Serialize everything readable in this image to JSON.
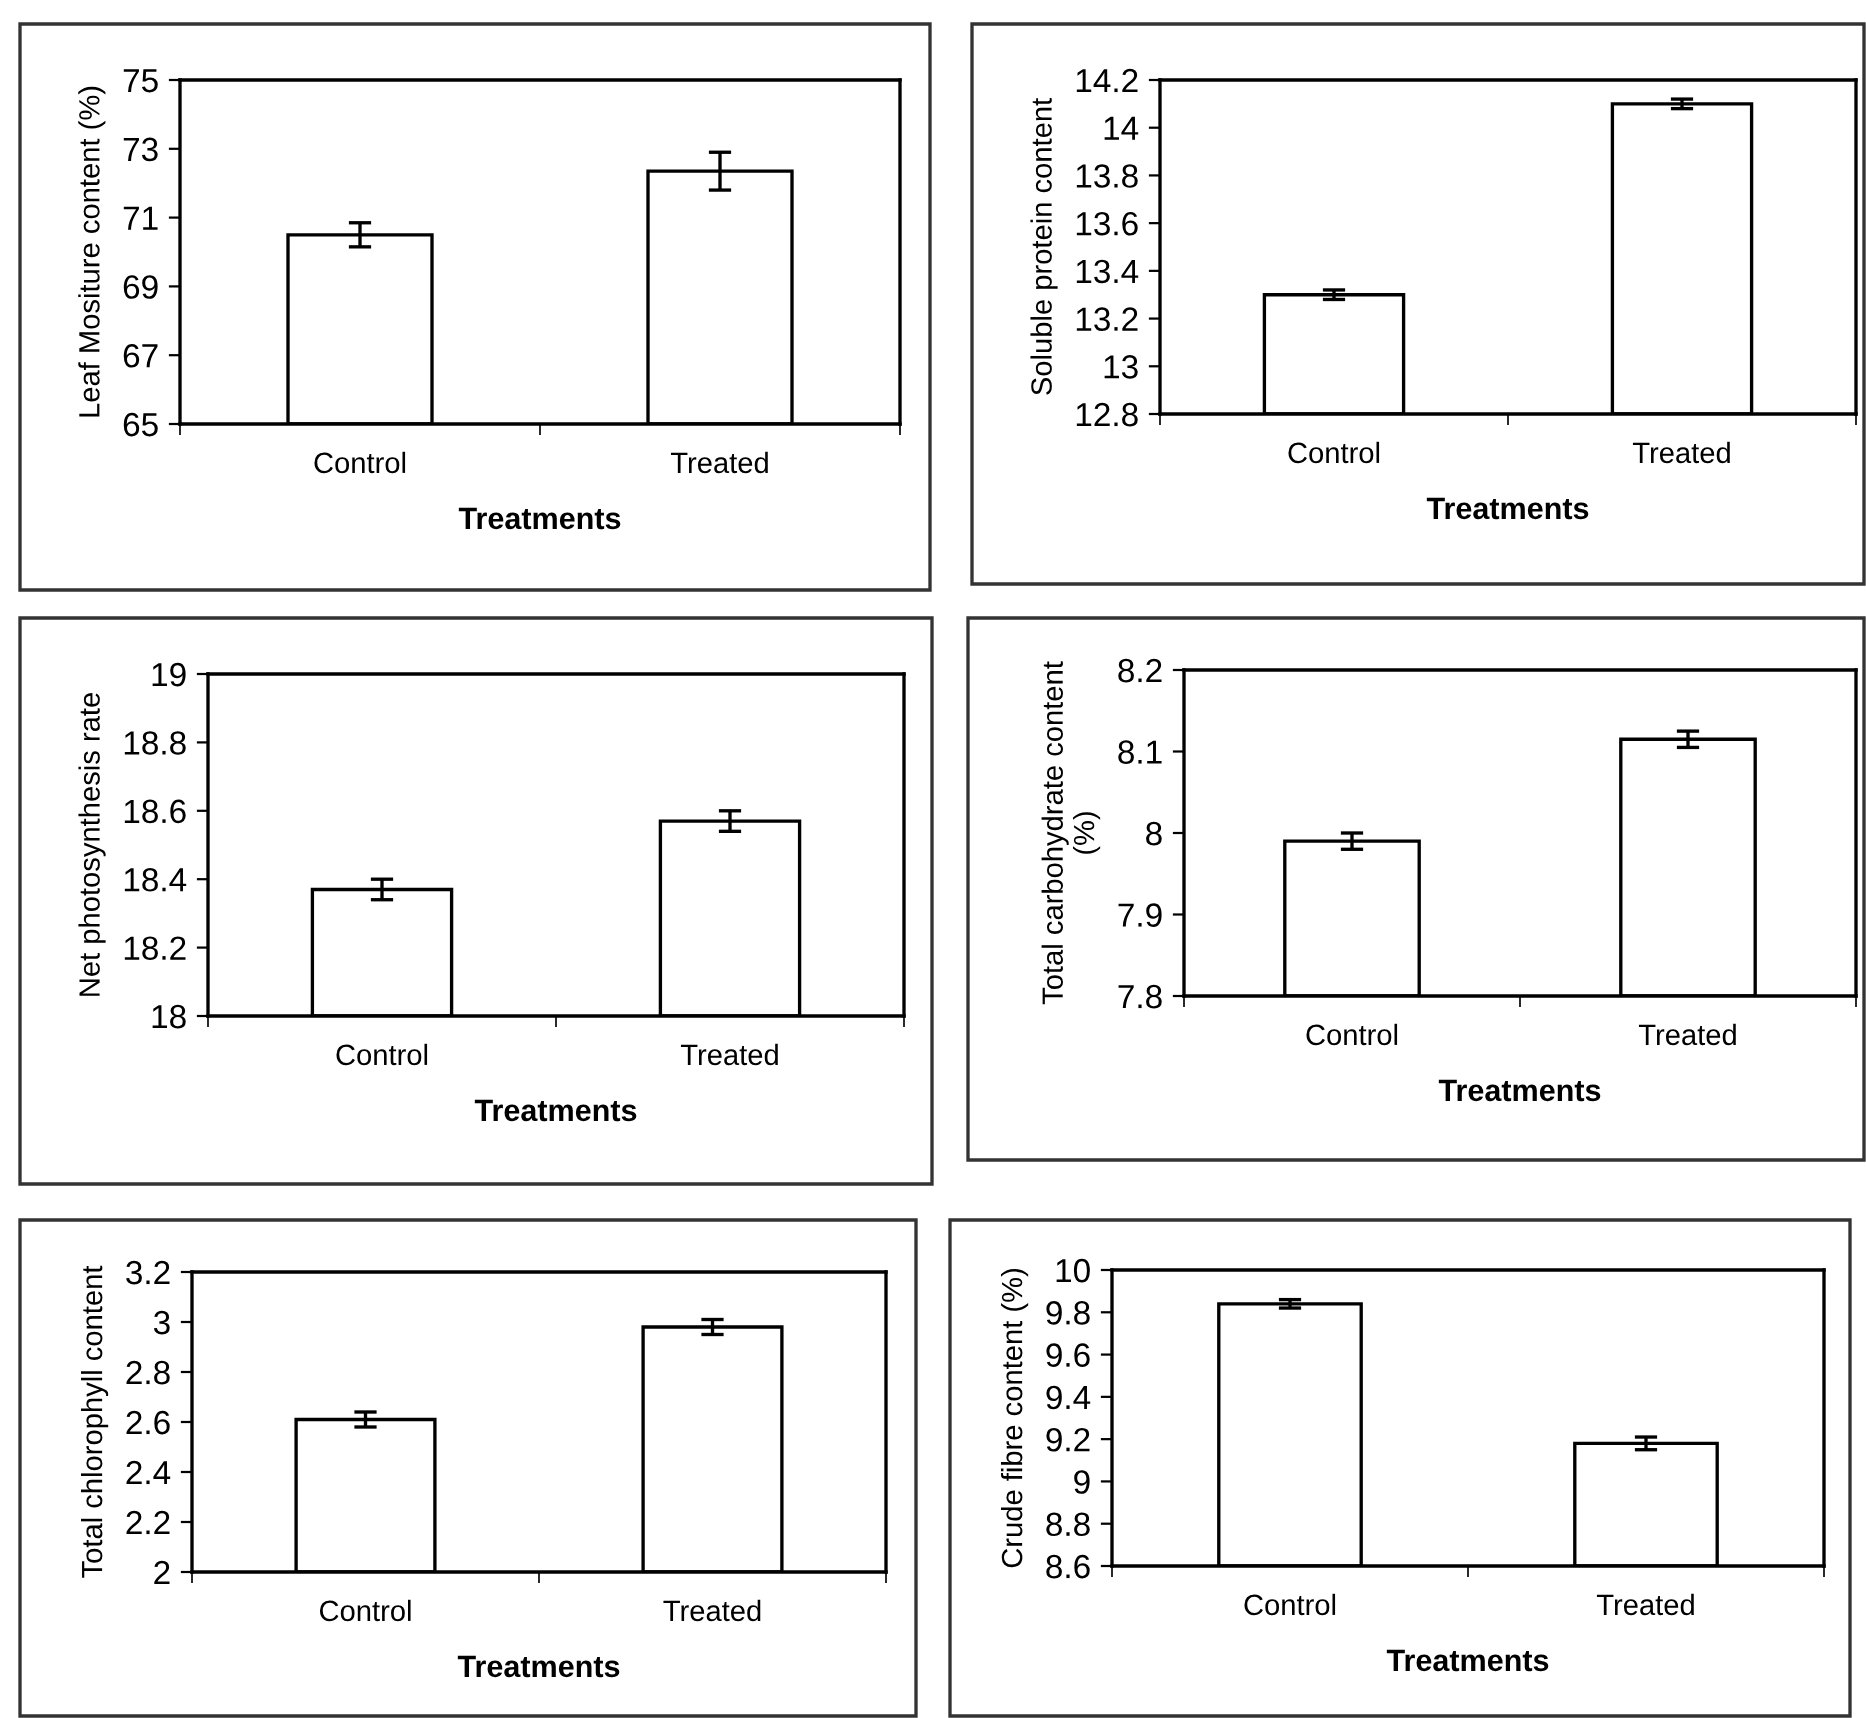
{
  "chart_data": [
    {
      "type": "bar",
      "categories": [
        "Control",
        "Treated"
      ],
      "values": [
        70.5,
        72.35
      ],
      "errors": [
        0.35,
        0.55
      ],
      "color": "#ffffff",
      "xlabel": "Treatments",
      "ylabel": "Leaf Mositure content (%)",
      "ylim": [
        65,
        75
      ],
      "yticks": [
        65,
        67,
        69,
        71,
        73,
        75
      ],
      "grid": false,
      "legend": false
    },
    {
      "type": "bar",
      "categories": [
        "Control",
        "Treated"
      ],
      "values": [
        13.3,
        14.1
      ],
      "errors": [
        0.02,
        0.02
      ],
      "color": "#ffffff",
      "xlabel": "Treatments",
      "ylabel": "Soluble protein content",
      "ylim": [
        12.8,
        14.2
      ],
      "yticks": [
        12.8,
        13,
        13.2,
        13.4,
        13.6,
        13.8,
        14,
        14.2
      ],
      "grid": false,
      "legend": false
    },
    {
      "type": "bar",
      "categories": [
        "Control",
        "Treated"
      ],
      "values": [
        18.37,
        18.57
      ],
      "errors": [
        0.03,
        0.03
      ],
      "color": "#ffffff",
      "xlabel": "Treatments",
      "ylabel": "Net photosynthesis rate",
      "ylim": [
        18,
        19
      ],
      "yticks": [
        18,
        18.2,
        18.4,
        18.6,
        18.8,
        19
      ],
      "grid": false,
      "legend": false
    },
    {
      "type": "bar",
      "categories": [
        "Control",
        "Treated"
      ],
      "values": [
        7.99,
        8.115
      ],
      "errors": [
        0.01,
        0.01
      ],
      "color": "#ffffff",
      "xlabel": "Treatments",
      "ylabel": "Total carbohydrate content\n(%)",
      "ylim": [
        7.8,
        8.2
      ],
      "yticks": [
        7.8,
        7.9,
        8,
        8.1,
        8.2
      ],
      "grid": false,
      "legend": false
    },
    {
      "type": "bar",
      "categories": [
        "Control",
        "Treated"
      ],
      "values": [
        2.61,
        2.98
      ],
      "errors": [
        0.03,
        0.03
      ],
      "color": "#ffffff",
      "xlabel": "Treatments",
      "ylabel": "Total chlorophyll content",
      "ylim": [
        2,
        3.2
      ],
      "yticks": [
        2,
        2.2,
        2.4,
        2.6,
        2.8,
        3,
        3.2
      ],
      "grid": false,
      "legend": false
    },
    {
      "type": "bar",
      "categories": [
        "Control",
        "Treated"
      ],
      "values": [
        9.84,
        9.18
      ],
      "errors": [
        0.02,
        0.03
      ],
      "color": "#ffffff",
      "xlabel": "Treatments",
      "ylabel": "Crude fibre content (%)",
      "ylim": [
        8.6,
        10
      ],
      "yticks": [
        8.6,
        8.8,
        9,
        9.2,
        9.4,
        9.6,
        9.8,
        10
      ],
      "grid": false,
      "legend": false
    }
  ]
}
